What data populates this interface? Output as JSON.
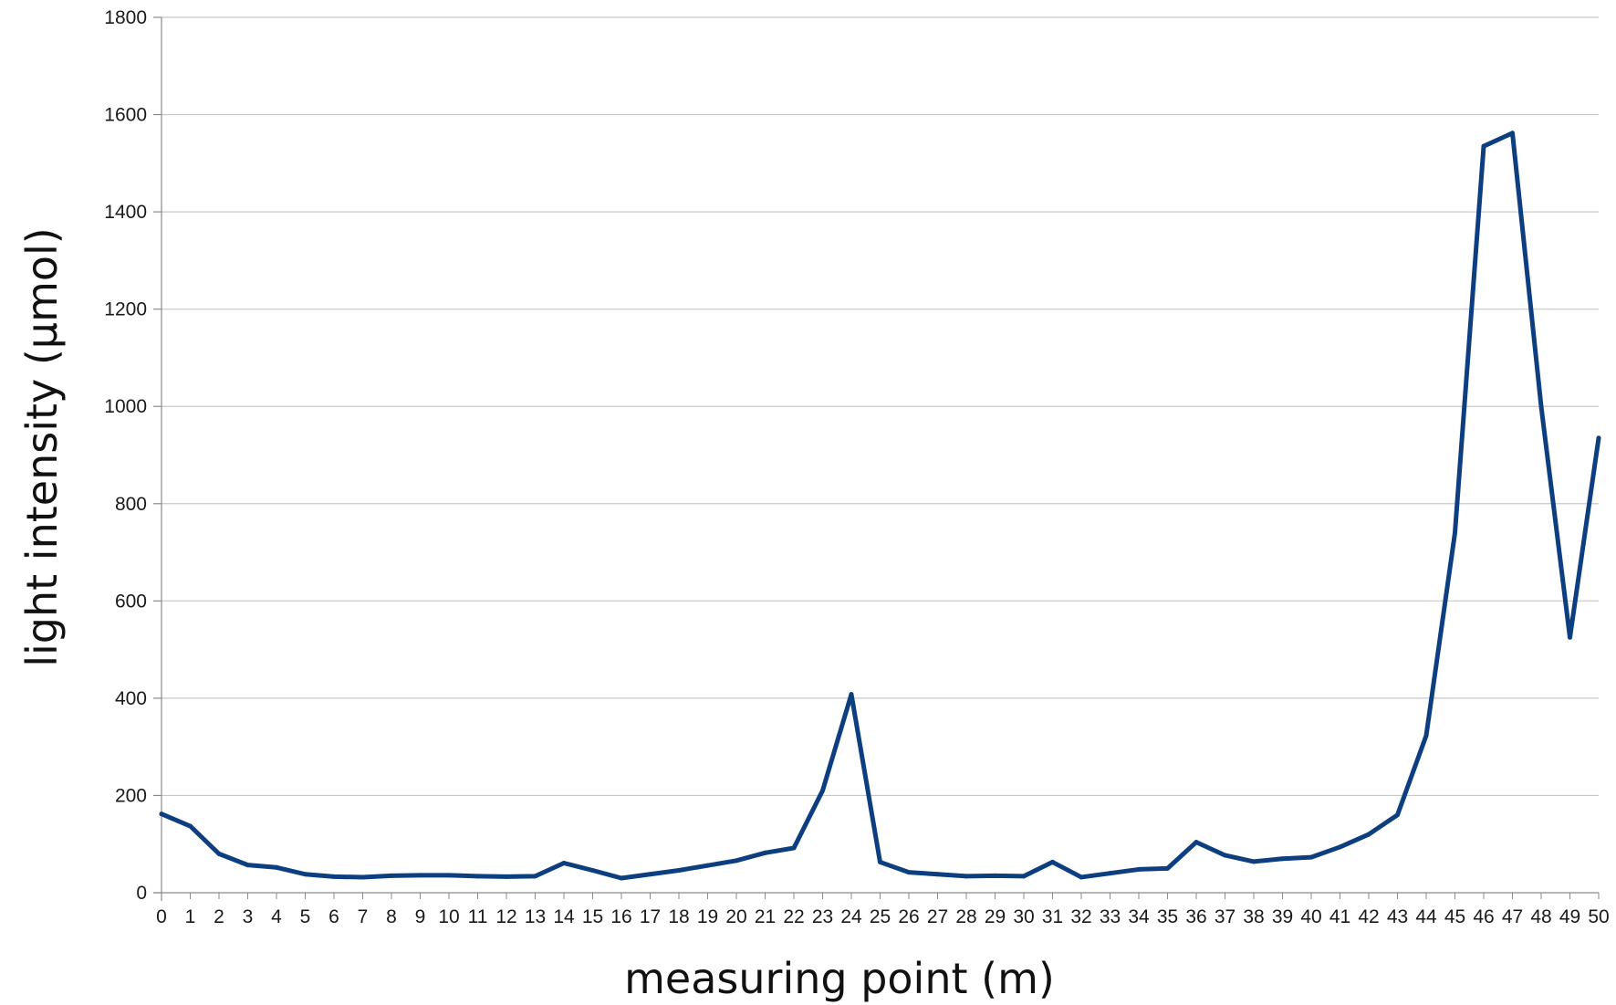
{
  "chart_data": {
    "type": "line",
    "title": "",
    "xlabel": "measuring point (m)",
    "ylabel": "light intensity (μmol)",
    "x": [
      0,
      1,
      2,
      3,
      4,
      5,
      6,
      7,
      8,
      9,
      10,
      11,
      12,
      13,
      14,
      15,
      16,
      17,
      18,
      19,
      20,
      21,
      22,
      23,
      24,
      25,
      26,
      27,
      28,
      29,
      30,
      31,
      32,
      33,
      34,
      35,
      36,
      37,
      38,
      39,
      40,
      41,
      42,
      43,
      44,
      45,
      46,
      47,
      48,
      49,
      50
    ],
    "ylim": [
      0,
      1800
    ],
    "yticks": [
      0,
      200,
      400,
      600,
      800,
      1000,
      1200,
      1400,
      1600,
      1800
    ],
    "grid": true,
    "legend": "none",
    "series": [
      {
        "color": "#0d3f80",
        "values": [
          162,
          137,
          80,
          57,
          52,
          38,
          33,
          32,
          35,
          36,
          36,
          34,
          33,
          34,
          61,
          46,
          30,
          38,
          46,
          56,
          66,
          82,
          92,
          210,
          408,
          63,
          42,
          38,
          34,
          35,
          34,
          63,
          32,
          40,
          48,
          50,
          104,
          77,
          64,
          70,
          73,
          94,
          120,
          160,
          323,
          740,
          1535,
          1562,
          1000,
          525,
          935
        ]
      }
    ]
  }
}
